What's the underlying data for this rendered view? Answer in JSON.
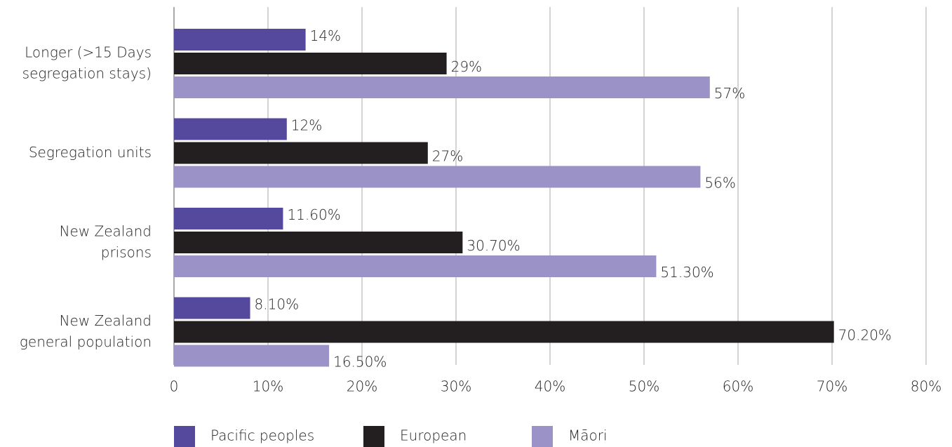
{
  "chart_data": {
    "type": "bar",
    "orientation": "horizontal",
    "categories": [
      "Longer (>15 Days\nsegregation stays)",
      "Segregation units",
      "New Zealand\nprisons",
      "New Zealand\ngeneral population"
    ],
    "series": [
      {
        "name": "Pacific peoples",
        "color": "#55499e",
        "values": [
          14,
          12,
          11.6,
          8.1
        ],
        "value_labels": [
          "14%",
          "12%",
          "11.60%",
          "8.10%"
        ]
      },
      {
        "name": "European",
        "color": "#231f20",
        "values": [
          29,
          27,
          30.7,
          70.2
        ],
        "value_labels": [
          "29%",
          "27%",
          "30.70%",
          "70.20%"
        ]
      },
      {
        "name": "Māori",
        "color": "#9b92c8",
        "values": [
          57,
          56,
          51.3,
          16.5
        ],
        "value_labels": [
          "57%",
          "56%",
          "51.30%",
          "16.50%"
        ]
      }
    ],
    "xlim": [
      0,
      80
    ],
    "xticks": [
      0,
      {
        "value": 10,
        "label": "10%"
      },
      {
        "value": 20,
        "label": "20%"
      },
      {
        "value": 30,
        "label": "30%"
      },
      {
        "value": 40,
        "label": "40%"
      },
      {
        "value": 50,
        "label": "50%"
      },
      {
        "value": 60,
        "label": "60%"
      },
      {
        "value": 70,
        "label": "70%"
      },
      {
        "value": 80,
        "label": "80%"
      }
    ],
    "grid": true,
    "legend": "bottom"
  }
}
